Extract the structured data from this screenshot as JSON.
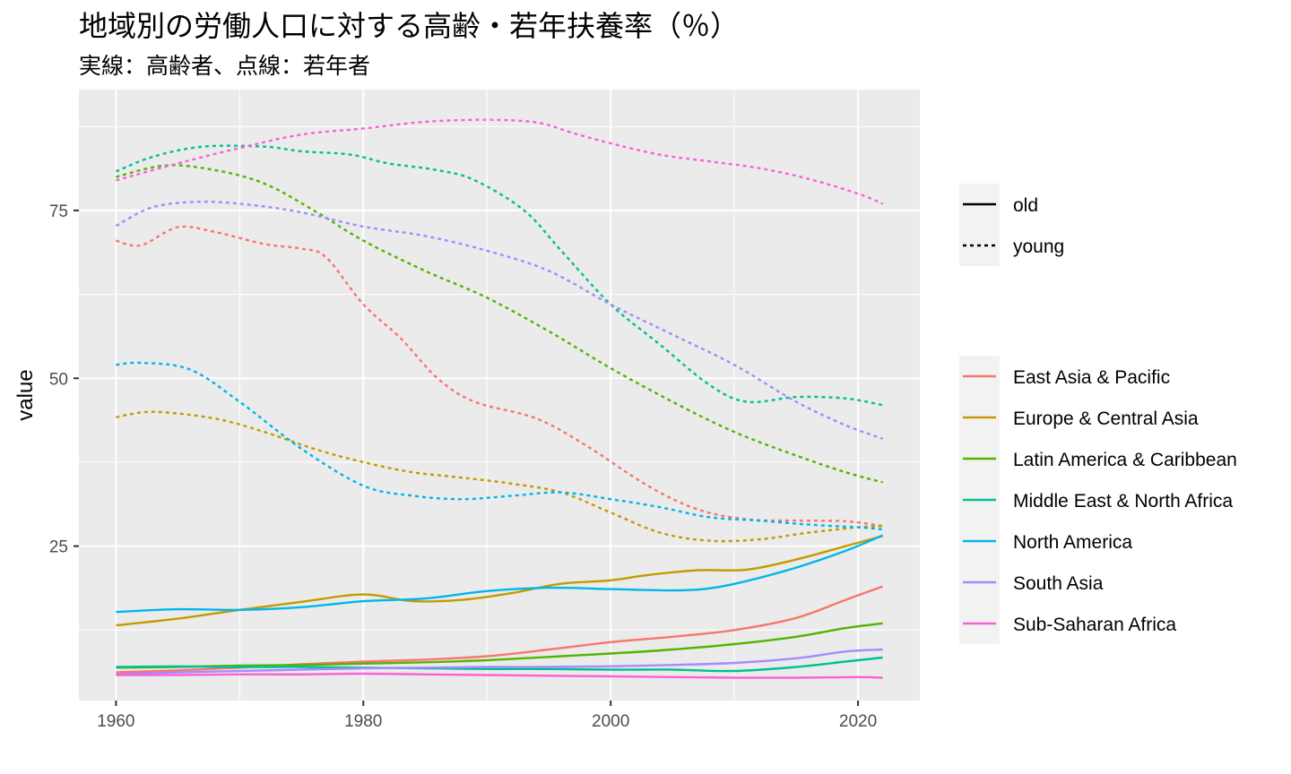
{
  "chart_data": {
    "type": "line",
    "title": "地域別の労働人口に対する高齢・若年扶養率（％）",
    "subtitle": "実線：高齢者、点線：若年者",
    "xlabel": "",
    "ylabel": "value",
    "xlim": [
      1957,
      2025
    ],
    "ylim": [
      2,
      93
    ],
    "x_ticks": [
      1960,
      1980,
      2000,
      2020
    ],
    "y_ticks": [
      25,
      50,
      75
    ],
    "grid": true,
    "legend_linetype": {
      "placement": "right",
      "entries": [
        {
          "label": "old",
          "dash": "solid"
        },
        {
          "label": "young",
          "dash": "dotted"
        }
      ]
    },
    "legend_color": {
      "placement": "right",
      "entries": [
        {
          "label": "East Asia & Pacific",
          "color": "#F8766D"
        },
        {
          "label": "Europe & Central Asia",
          "color": "#C49A00"
        },
        {
          "label": "Latin America & Caribbean",
          "color": "#53B400"
        },
        {
          "label": "Middle East & North Africa",
          "color": "#00C094"
        },
        {
          "label": "North America",
          "color": "#00B6EB"
        },
        {
          "label": "South Asia",
          "color": "#A58AFF"
        },
        {
          "label": "Sub-Saharan Africa",
          "color": "#FB61D7"
        }
      ]
    },
    "series": [
      {
        "region": "East Asia & Pacific",
        "type": "young",
        "color": "#F8766D",
        "points": [
          [
            1960,
            70.5
          ],
          [
            1962,
            69.8
          ],
          [
            1965,
            72.5
          ],
          [
            1968,
            71.8
          ],
          [
            1972,
            70
          ],
          [
            1975,
            69.3
          ],
          [
            1977,
            68
          ],
          [
            1980,
            61
          ],
          [
            1983,
            56
          ],
          [
            1986,
            50
          ],
          [
            1989,
            46.5
          ],
          [
            1994,
            44
          ],
          [
            1998,
            40
          ],
          [
            2003,
            34
          ],
          [
            2007,
            30.5
          ],
          [
            2011,
            29
          ],
          [
            2015,
            28.8
          ],
          [
            2019,
            28.7
          ],
          [
            2022,
            28
          ]
        ]
      },
      {
        "region": "Europe & Central Asia",
        "type": "young",
        "color": "#C49A00",
        "points": [
          [
            1960,
            44.2
          ],
          [
            1963,
            45
          ],
          [
            1968,
            44
          ],
          [
            1972,
            42
          ],
          [
            1976,
            39.5
          ],
          [
            1980,
            37.5
          ],
          [
            1984,
            36
          ],
          [
            1988,
            35.2
          ],
          [
            1992,
            34.3
          ],
          [
            1996,
            33
          ],
          [
            2000,
            30
          ],
          [
            2004,
            27
          ],
          [
            2008,
            25.8
          ],
          [
            2012,
            26
          ],
          [
            2016,
            27
          ],
          [
            2020,
            27.8
          ],
          [
            2022,
            28
          ]
        ]
      },
      {
        "region": "Latin America & Caribbean",
        "type": "young",
        "color": "#53B400",
        "points": [
          [
            1960,
            80
          ],
          [
            1964,
            81.7
          ],
          [
            1968,
            81
          ],
          [
            1972,
            79
          ],
          [
            1976,
            75
          ],
          [
            1980,
            70.5
          ],
          [
            1985,
            66
          ],
          [
            1990,
            62
          ],
          [
            1995,
            57
          ],
          [
            2000,
            51.5
          ],
          [
            2005,
            46.5
          ],
          [
            2010,
            42
          ],
          [
            2015,
            38.5
          ],
          [
            2019,
            36
          ],
          [
            2022,
            34.5
          ]
        ]
      },
      {
        "region": "Middle East & North Africa",
        "type": "young",
        "color": "#00C094",
        "points": [
          [
            1960,
            80.8
          ],
          [
            1963,
            83
          ],
          [
            1967,
            84.5
          ],
          [
            1972,
            84.5
          ],
          [
            1975,
            83.8
          ],
          [
            1979,
            83.3
          ],
          [
            1982,
            82
          ],
          [
            1986,
            81
          ],
          [
            1989,
            79.5
          ],
          [
            1993,
            75
          ],
          [
            1996,
            69
          ],
          [
            2000,
            61
          ],
          [
            2004,
            55
          ],
          [
            2008,
            49
          ],
          [
            2011,
            46.5
          ],
          [
            2015,
            47.2
          ],
          [
            2019,
            47
          ],
          [
            2022,
            46
          ]
        ]
      },
      {
        "region": "North America",
        "type": "young",
        "color": "#00B6EB",
        "points": [
          [
            1960,
            52
          ],
          [
            1962,
            52.3
          ],
          [
            1966,
            51.3
          ],
          [
            1970,
            46.5
          ],
          [
            1975,
            39.5
          ],
          [
            1980,
            34
          ],
          [
            1984,
            32.5
          ],
          [
            1988,
            32
          ],
          [
            1992,
            32.5
          ],
          [
            1996,
            33
          ],
          [
            2000,
            32
          ],
          [
            2004,
            30.8
          ],
          [
            2008,
            29.3
          ],
          [
            2012,
            28.8
          ],
          [
            2016,
            28.2
          ],
          [
            2020,
            27.8
          ],
          [
            2022,
            27.5
          ]
        ]
      },
      {
        "region": "South Asia",
        "type": "young",
        "color": "#A58AFF",
        "points": [
          [
            1960,
            72.7
          ],
          [
            1963,
            75.5
          ],
          [
            1967,
            76.3
          ],
          [
            1971,
            75.8
          ],
          [
            1975,
            74.7
          ],
          [
            1980,
            72.6
          ],
          [
            1985,
            71.2
          ],
          [
            1990,
            69
          ],
          [
            1995,
            66
          ],
          [
            2000,
            61
          ],
          [
            2005,
            56.5
          ],
          [
            2010,
            52
          ],
          [
            2015,
            46.5
          ],
          [
            2019,
            43
          ],
          [
            2022,
            41
          ]
        ]
      },
      {
        "region": "Sub-Saharan Africa",
        "type": "young",
        "color": "#FB61D7",
        "points": [
          [
            1960,
            79.5
          ],
          [
            1965,
            82
          ],
          [
            1970,
            84.3
          ],
          [
            1975,
            86.3
          ],
          [
            1980,
            87.2
          ],
          [
            1985,
            88.2
          ],
          [
            1990,
            88.5
          ],
          [
            1994,
            88.1
          ],
          [
            1997,
            86.5
          ],
          [
            2000,
            85
          ],
          [
            2004,
            83.3
          ],
          [
            2008,
            82.3
          ],
          [
            2012,
            81.3
          ],
          [
            2016,
            79.7
          ],
          [
            2020,
            77.5
          ],
          [
            2022,
            76
          ]
        ]
      },
      {
        "region": "East Asia & Pacific",
        "type": "old",
        "color": "#F8766D",
        "points": [
          [
            1960,
            6.2
          ],
          [
            1965,
            6.5
          ],
          [
            1970,
            6.9
          ],
          [
            1975,
            7.4
          ],
          [
            1980,
            7.8
          ],
          [
            1985,
            8.1
          ],
          [
            1990,
            8.6
          ],
          [
            1995,
            9.6
          ],
          [
            2000,
            10.7
          ],
          [
            2005,
            11.5
          ],
          [
            2010,
            12.5
          ],
          [
            2015,
            14.3
          ],
          [
            2019,
            17
          ],
          [
            2022,
            19
          ]
        ]
      },
      {
        "region": "Europe & Central Asia",
        "type": "old",
        "color": "#C49A00",
        "points": [
          [
            1960,
            13.2
          ],
          [
            1965,
            14.2
          ],
          [
            1970,
            15.5
          ],
          [
            1975,
            16.7
          ],
          [
            1980,
            17.8
          ],
          [
            1984,
            16.8
          ],
          [
            1988,
            17
          ],
          [
            1992,
            18
          ],
          [
            1996,
            19.4
          ],
          [
            2000,
            19.9
          ],
          [
            2003,
            20.7
          ],
          [
            2007,
            21.4
          ],
          [
            2011,
            21.5
          ],
          [
            2015,
            23
          ],
          [
            2019,
            25
          ],
          [
            2022,
            26.5
          ]
        ]
      },
      {
        "region": "Latin America & Caribbean",
        "type": "old",
        "color": "#53B400",
        "points": [
          [
            1960,
            6.9
          ],
          [
            1965,
            7
          ],
          [
            1970,
            7.2
          ],
          [
            1975,
            7.3
          ],
          [
            1980,
            7.5
          ],
          [
            1985,
            7.7
          ],
          [
            1990,
            8
          ],
          [
            1995,
            8.5
          ],
          [
            2000,
            9
          ],
          [
            2005,
            9.6
          ],
          [
            2010,
            10.4
          ],
          [
            2015,
            11.5
          ],
          [
            2019,
            12.8
          ],
          [
            2022,
            13.5
          ]
        ]
      },
      {
        "region": "Middle East & North Africa",
        "type": "old",
        "color": "#00C094",
        "points": [
          [
            1960,
            7
          ],
          [
            1965,
            7.1
          ],
          [
            1970,
            7
          ],
          [
            1975,
            7
          ],
          [
            1980,
            6.9
          ],
          [
            1985,
            6.8
          ],
          [
            1990,
            6.7
          ],
          [
            1995,
            6.7
          ],
          [
            2000,
            6.6
          ],
          [
            2005,
            6.6
          ],
          [
            2010,
            6.4
          ],
          [
            2015,
            7
          ],
          [
            2019,
            7.8
          ],
          [
            2022,
            8.4
          ]
        ]
      },
      {
        "region": "North America",
        "type": "old",
        "color": "#00B6EB",
        "points": [
          [
            1960,
            15.2
          ],
          [
            1965,
            15.6
          ],
          [
            1970,
            15.5
          ],
          [
            1975,
            15.9
          ],
          [
            1980,
            16.8
          ],
          [
            1985,
            17.2
          ],
          [
            1990,
            18.3
          ],
          [
            1995,
            18.8
          ],
          [
            2000,
            18.6
          ],
          [
            2005,
            18.4
          ],
          [
            2008,
            18.7
          ],
          [
            2011,
            19.8
          ],
          [
            2015,
            21.8
          ],
          [
            2019,
            24.3
          ],
          [
            2022,
            26.6
          ]
        ]
      },
      {
        "region": "South Asia",
        "type": "old",
        "color": "#A58AFF",
        "points": [
          [
            1960,
            5.9
          ],
          [
            1965,
            6.2
          ],
          [
            1970,
            6.4
          ],
          [
            1975,
            6.6
          ],
          [
            1980,
            6.8
          ],
          [
            1985,
            6.9
          ],
          [
            1990,
            7
          ],
          [
            1995,
            7
          ],
          [
            2000,
            7.1
          ],
          [
            2005,
            7.3
          ],
          [
            2010,
            7.6
          ],
          [
            2015,
            8.3
          ],
          [
            2019,
            9.3
          ],
          [
            2022,
            9.6
          ]
        ]
      },
      {
        "region": "Sub-Saharan Africa",
        "type": "old",
        "color": "#FB61D7",
        "points": [
          [
            1960,
            5.8
          ],
          [
            1965,
            5.8
          ],
          [
            1970,
            5.9
          ],
          [
            1975,
            5.9
          ],
          [
            1980,
            6
          ],
          [
            1985,
            5.9
          ],
          [
            1990,
            5.8
          ],
          [
            1995,
            5.7
          ],
          [
            2000,
            5.6
          ],
          [
            2005,
            5.5
          ],
          [
            2010,
            5.4
          ],
          [
            2015,
            5.4
          ],
          [
            2020,
            5.5
          ],
          [
            2022,
            5.4
          ]
        ]
      }
    ]
  }
}
